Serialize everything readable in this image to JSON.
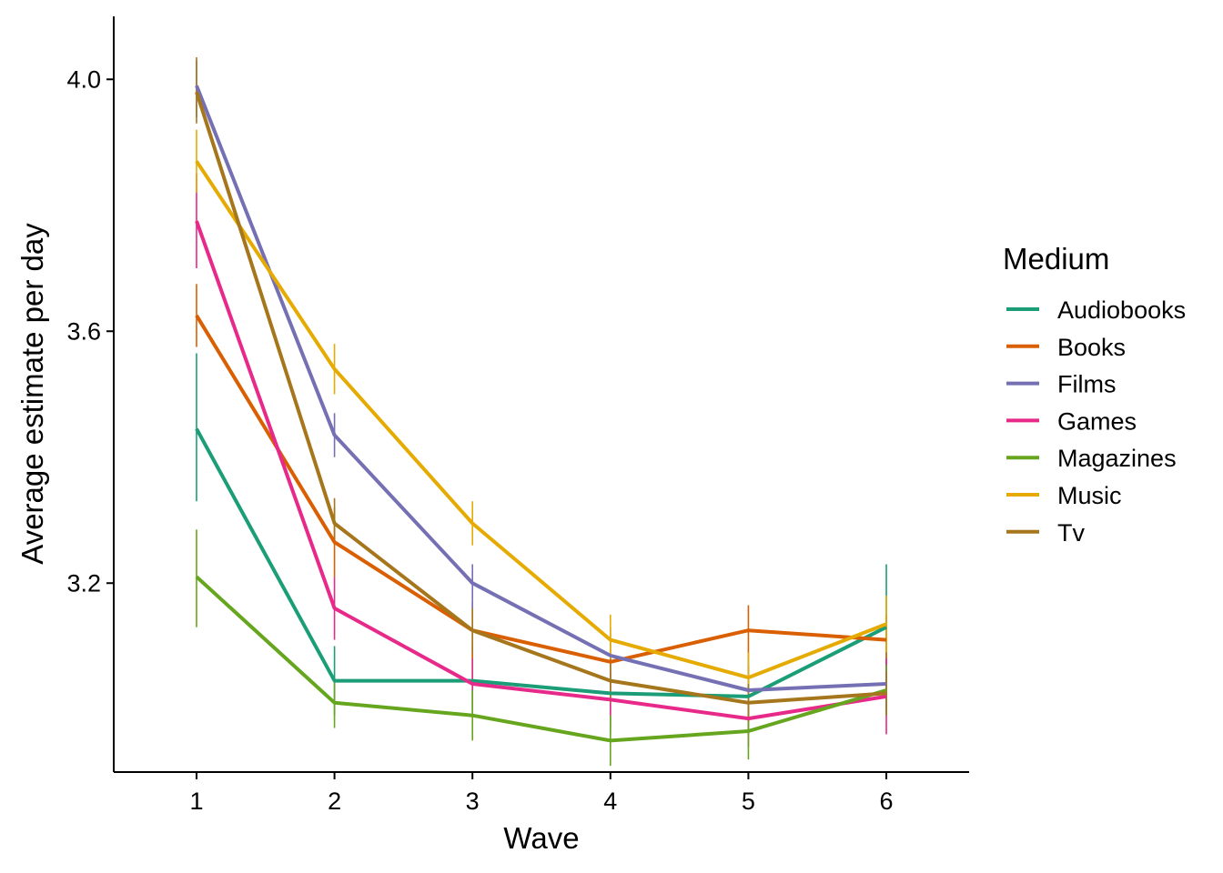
{
  "chart_data": {
    "type": "line",
    "xlabel": "Wave",
    "ylabel": "Average estimate per day",
    "x": [
      1,
      2,
      3,
      4,
      5,
      6
    ],
    "x_ticks": [
      "1",
      "2",
      "3",
      "4",
      "5",
      "6"
    ],
    "y_ticks": [
      "3.2",
      "3.6",
      "4.0"
    ],
    "y_tick_values": [
      3.2,
      3.6,
      4.0
    ],
    "xlim": [
      0.4,
      6.6
    ],
    "ylim": [
      2.9,
      4.1
    ],
    "grid": false,
    "error_bars": true,
    "legend": {
      "title": "Medium",
      "placement": "right"
    },
    "series": [
      {
        "name": "Audiobooks",
        "color": "#1B9E77",
        "values": [
          3.445,
          3.045,
          3.045,
          3.025,
          3.02,
          3.13
        ],
        "lower": [
          3.33,
          2.99,
          2.99,
          2.96,
          2.96,
          3.03
        ],
        "upper": [
          3.565,
          3.1,
          3.1,
          3.08,
          3.08,
          3.23
        ]
      },
      {
        "name": "Books",
        "color": "#D95F02",
        "values": [
          3.625,
          3.265,
          3.125,
          3.075,
          3.125,
          3.11
        ],
        "lower": [
          3.575,
          3.21,
          3.08,
          3.03,
          3.08,
          3.07
        ],
        "upper": [
          3.675,
          3.32,
          3.17,
          3.12,
          3.165,
          3.15
        ]
      },
      {
        "name": "Films",
        "color": "#7570B3",
        "values": [
          3.99,
          3.435,
          3.2,
          3.085,
          3.03,
          3.04
        ],
        "lower": [
          3.94,
          3.4,
          3.16,
          3.04,
          2.99,
          3.0
        ],
        "upper": [
          4.03,
          3.47,
          3.23,
          3.13,
          3.07,
          3.08
        ]
      },
      {
        "name": "Games",
        "color": "#E7298A",
        "values": [
          3.775,
          3.16,
          3.04,
          3.015,
          2.985,
          3.02
        ],
        "lower": [
          3.7,
          3.11,
          3.0,
          2.97,
          2.94,
          2.96
        ],
        "upper": [
          3.85,
          3.21,
          3.08,
          3.06,
          3.03,
          3.08
        ]
      },
      {
        "name": "Magazines",
        "color": "#66A61E",
        "values": [
          3.21,
          3.01,
          2.99,
          2.95,
          2.965,
          3.03
        ],
        "lower": [
          3.13,
          2.97,
          2.95,
          2.91,
          2.92,
          2.99
        ],
        "upper": [
          3.285,
          3.05,
          3.03,
          2.99,
          3.01,
          3.07
        ]
      },
      {
        "name": "Music",
        "color": "#E6AB02",
        "values": [
          3.87,
          3.54,
          3.295,
          3.11,
          3.05,
          3.135
        ],
        "lower": [
          3.82,
          3.5,
          3.26,
          3.07,
          3.01,
          3.09
        ],
        "upper": [
          3.92,
          3.58,
          3.33,
          3.15,
          3.09,
          3.18
        ]
      },
      {
        "name": "Tv",
        "color": "#A6761D",
        "values": [
          3.98,
          3.295,
          3.125,
          3.045,
          3.01,
          3.025
        ],
        "lower": [
          3.93,
          3.26,
          3.09,
          3.01,
          2.98,
          2.99
        ],
        "upper": [
          4.035,
          3.335,
          3.16,
          3.08,
          3.04,
          3.06
        ]
      }
    ]
  }
}
